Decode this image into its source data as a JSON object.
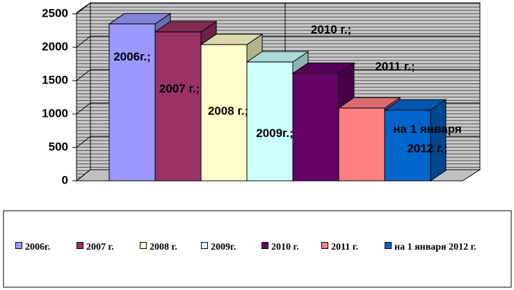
{
  "chart_data": {
    "type": "bar3d",
    "categories": [
      "2006г.",
      "2007 г.",
      "2008 г.",
      "2009г.",
      "2010 г.",
      "2011 г.",
      "на 1 января 2012 г."
    ],
    "values": [
      2350,
      2230,
      2040,
      1780,
      1610,
      1090,
      1060
    ],
    "data_labels": [
      "2006г.;",
      "2007 г.;",
      "2008 г.;",
      "2009г.;",
      "2010 г.;",
      "2011 г.;",
      "на 1 января 2012 г.;"
    ],
    "colors": [
      "#9999ff",
      "#993366",
      "#ffffcc",
      "#ccffff",
      "#660066",
      "#ff8080",
      "#0066cc"
    ],
    "ylim": [
      0,
      2500
    ],
    "yticks": [
      0,
      500,
      1000,
      1500,
      2000,
      2500
    ],
    "grid": true,
    "legend": "bottom"
  }
}
